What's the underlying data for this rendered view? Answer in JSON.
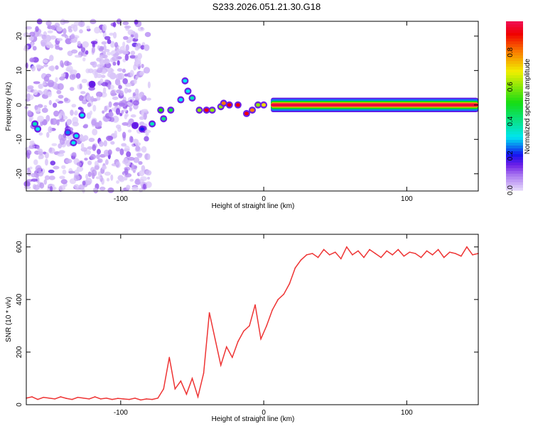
{
  "chart_data": [
    {
      "type": "heatmap",
      "title": "S233.2026.051.21.30.G18",
      "xlabel": "Height of straight line (km)",
      "ylabel": "Frequency (Hz)",
      "xlim": [
        -166,
        150
      ],
      "ylim": [
        -25,
        24.3
      ],
      "xticks": [
        -100,
        0,
        100
      ],
      "yticks": [
        -20,
        -10,
        0,
        10,
        20
      ],
      "colorbar": {
        "label": "Normalized spectral amplitude",
        "range": [
          0,
          0.98
        ],
        "ticks": [
          "0.0",
          "0.2",
          "0.4",
          "0.6",
          "0.8"
        ]
      },
      "ridge": [
        [
          -160,
          -5.5,
          0.35
        ],
        [
          -158,
          -7,
          0.3
        ],
        [
          -137,
          -8,
          0.25
        ],
        [
          -133,
          -11,
          0.3
        ],
        [
          -131,
          -9,
          0.3
        ],
        [
          -127,
          -3,
          0.3
        ],
        [
          -120,
          6,
          0.15
        ],
        [
          -90,
          -6,
          0.15
        ],
        [
          -85,
          -7,
          0.2
        ],
        [
          -78,
          -5.5,
          0.35
        ],
        [
          -72,
          -1.5,
          0.5
        ],
        [
          -70,
          -4,
          0.4
        ],
        [
          -65,
          -1.5,
          0.45
        ],
        [
          -58,
          1.5,
          0.3
        ],
        [
          -55,
          7,
          0.3
        ],
        [
          -53,
          4,
          0.3
        ],
        [
          -50,
          2,
          0.35
        ],
        [
          -45,
          -1.5,
          0.6
        ],
        [
          -40,
          -1.5,
          0.9
        ],
        [
          -36,
          -1.5,
          0.6
        ],
        [
          -30,
          -0.5,
          0.6
        ],
        [
          -28,
          0.5,
          0.8
        ],
        [
          -24,
          0,
          0.9
        ],
        [
          -18,
          0,
          0.9
        ],
        [
          -12,
          -2.5,
          0.9
        ],
        [
          -8,
          -1.5,
          0.8
        ],
        [
          -4,
          0,
          0.6
        ],
        [
          0,
          0,
          0.7
        ]
      ],
      "band": {
        "x_start": 5,
        "x_end": 150,
        "freq": 0,
        "amplitude": 0.95
      }
    },
    {
      "type": "line",
      "xlabel": "Height of straight line (km)",
      "ylabel": "SNR (10 * v/v)",
      "xlim": [
        -166,
        150
      ],
      "ylim": [
        0,
        648
      ],
      "xticks": [
        -100,
        0,
        100
      ],
      "yticks": [
        0,
        200,
        400,
        600
      ],
      "color": "#ee3333",
      "x": [
        -166,
        -162,
        -158,
        -154,
        -150,
        -146,
        -142,
        -138,
        -134,
        -130,
        -126,
        -122,
        -118,
        -114,
        -110,
        -106,
        -102,
        -98,
        -94,
        -90,
        -86,
        -82,
        -78,
        -74,
        -70,
        -66,
        -62,
        -58,
        -54,
        -50,
        -46,
        -42,
        -38,
        -34,
        -30,
        -26,
        -22,
        -18,
        -14,
        -10,
        -6,
        -2,
        2,
        6,
        10,
        14,
        18,
        22,
        26,
        30,
        34,
        38,
        42,
        46,
        50,
        54,
        58,
        62,
        66,
        70,
        74,
        78,
        82,
        86,
        90,
        94,
        98,
        102,
        106,
        110,
        114,
        118,
        122,
        126,
        130,
        134,
        138,
        142,
        146,
        150
      ],
      "y": [
        25,
        30,
        20,
        28,
        25,
        22,
        30,
        24,
        20,
        28,
        25,
        22,
        30,
        22,
        25,
        20,
        24,
        22,
        20,
        25,
        18,
        22,
        20,
        25,
        60,
        180,
        60,
        90,
        40,
        100,
        30,
        120,
        350,
        250,
        150,
        220,
        180,
        240,
        280,
        300,
        380,
        250,
        300,
        360,
        400,
        420,
        460,
        520,
        550,
        570,
        575,
        560,
        590,
        570,
        580,
        555,
        600,
        570,
        585,
        560,
        590,
        575,
        560,
        585,
        570,
        590,
        565,
        580,
        575,
        560,
        585,
        570,
        590,
        560,
        580,
        575,
        565,
        600,
        570,
        575
      ]
    }
  ]
}
